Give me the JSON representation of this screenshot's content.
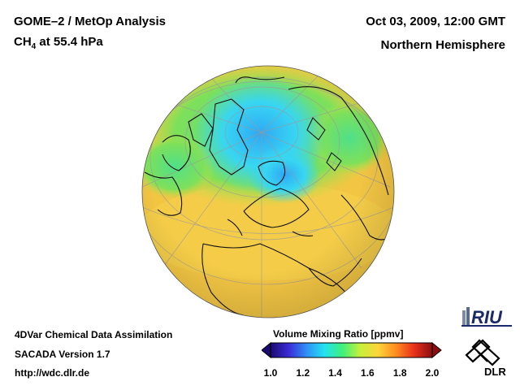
{
  "header": {
    "title": "GOME–2 / MetOp Analysis",
    "species_prefix": "CH",
    "species_subscript": "4",
    "species_suffix": " at 55.4 hPa",
    "date": "Oct 03, 2009, 12:00 GMT",
    "region": "Northern Hemisphere"
  },
  "footer": {
    "line1": "4DVar Chemical Data Assimilation",
    "line2": "SACADA Version 1.7",
    "url": "http://wdc.dlr.de"
  },
  "colorbar": {
    "title": "Volume Mixing Ratio [ppmv]",
    "ticks": [
      "1.0",
      "1.2",
      "1.4",
      "1.6",
      "1.8",
      "2.0"
    ],
    "min": 1.0,
    "max": 2.0,
    "colors": [
      "#1a0a6e",
      "#3a2bd6",
      "#2f8ff5",
      "#22e3f0",
      "#3ef07a",
      "#c8f03a",
      "#ffd43a",
      "#ff8a1f",
      "#e8301a",
      "#8a0f10"
    ]
  },
  "logos": {
    "riu": "RIU",
    "dlr": "DLR"
  },
  "map": {
    "ocean_color": "#f2c543",
    "land_outline_color": "#101010",
    "low_ch4_color": "#38d6f2",
    "mid_ch4_color": "#58e07a"
  }
}
